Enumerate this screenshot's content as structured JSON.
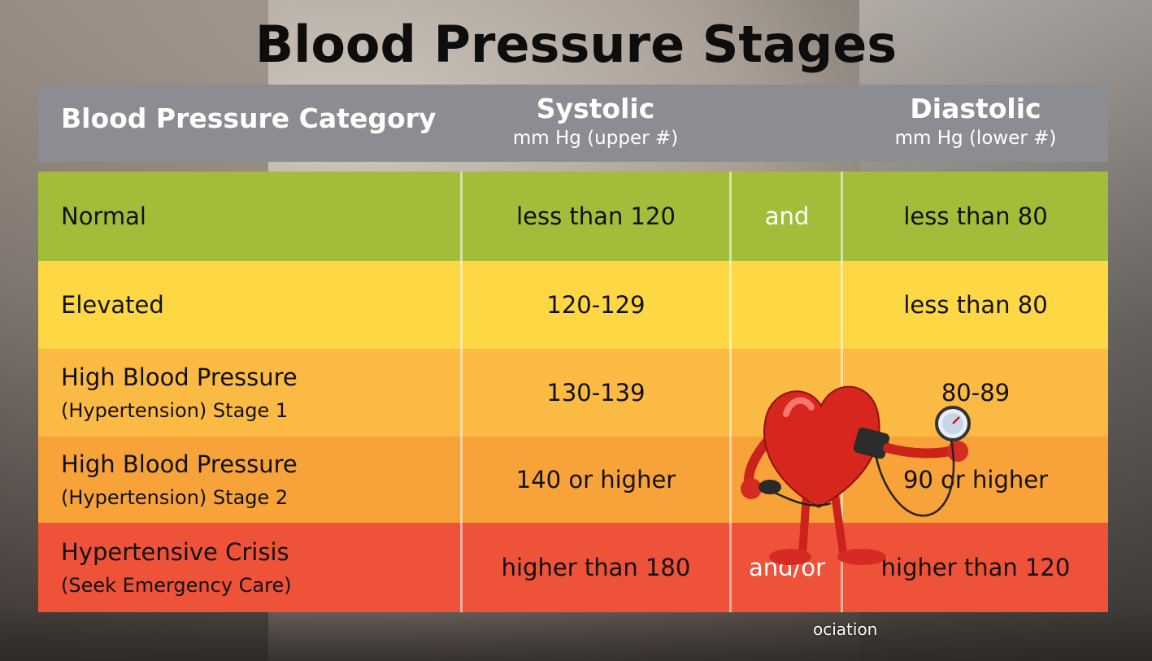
{
  "title": "Blood Pressure Stages",
  "header": {
    "category": "Blood Pressure Category",
    "systolic": "Systolic",
    "systolic_unit": "mm Hg (upper #)",
    "diastolic": "Diastolic",
    "diastolic_unit": "mm Hg (lower #)"
  },
  "rows": [
    {
      "category": "Normal",
      "subtitle": "",
      "systolic": "less than 120",
      "connector": "and",
      "diastolic": "less than 80",
      "color": "#a3bd3a"
    },
    {
      "category": "Elevated",
      "subtitle": "",
      "systolic": "120-129",
      "connector": "",
      "diastolic": "less than 80",
      "color": "#fdd744"
    },
    {
      "category": "High Blood Pressure",
      "subtitle": "(Hypertension) Stage 1",
      "systolic": "130-139",
      "connector": "",
      "diastolic": "80-89",
      "color": "#fbba44"
    },
    {
      "category": "High Blood Pressure",
      "subtitle": "(Hypertension) Stage 2",
      "systolic": "140 or higher",
      "connector": "",
      "diastolic": "90 or higher",
      "color": "#f8a23a"
    },
    {
      "category": "Hypertensive Crisis",
      "subtitle": "(Seek Emergency Care)",
      "systolic": "higher than 180",
      "connector": "and/or",
      "diastolic": "higher than 120",
      "color": "#ee5239"
    }
  ],
  "credit": "ociation",
  "icons": {
    "heart": "heart-with-blood-pressure-gauge-icon"
  }
}
